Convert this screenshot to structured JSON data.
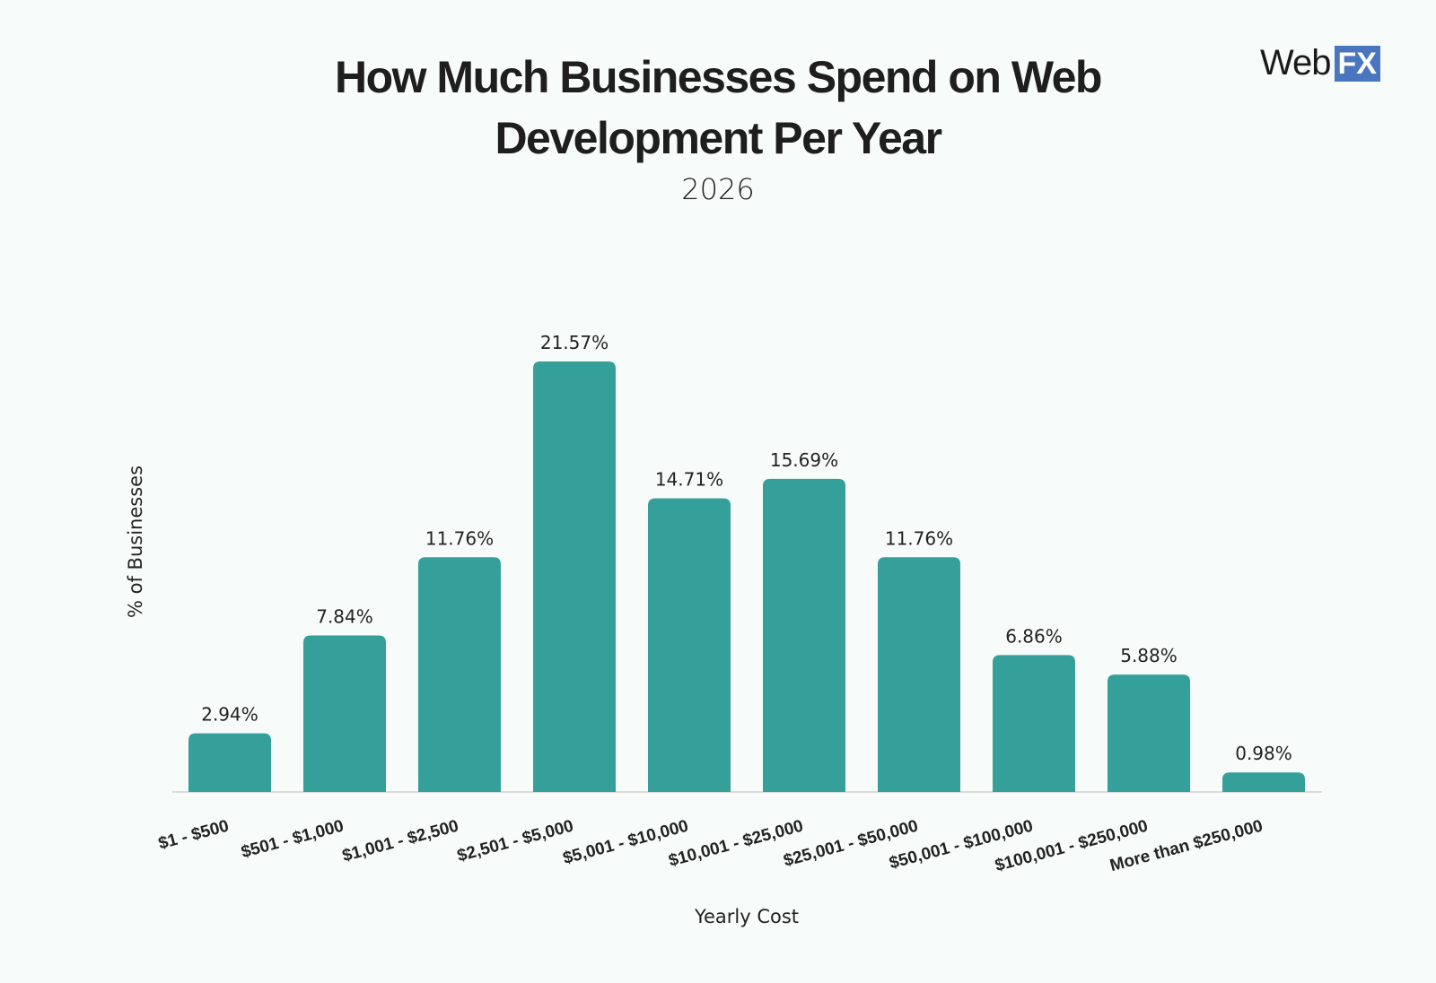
{
  "logo": {
    "text_a": "Web",
    "text_b": "FX",
    "color": "#4a76c0"
  },
  "chart_data": {
    "type": "bar",
    "title": "How Much Businesses Spend on Web Development Per Year",
    "title_line1": "How Much Businesses Spend on Web",
    "title_line2": "Development Per Year",
    "subtitle": "2026",
    "xlabel": "Yearly Cost",
    "ylabel": "% of Businesses",
    "categories": [
      "$1 - $500",
      "$501 - $1,000",
      "$1,001 - $2,500",
      "$2,501 - $5,000",
      "$5,001 - $10,000",
      "$10,001 - $25,000",
      "$25,001 - $50,000",
      "$50,001 - $100,000",
      "$100,001 - $250,000",
      "More than $250,000"
    ],
    "values": [
      2.94,
      7.84,
      11.76,
      21.57,
      14.71,
      15.69,
      11.76,
      6.86,
      5.88,
      0.98
    ],
    "data_labels": [
      "2.94%",
      "7.84%",
      "11.76%",
      "21.57%",
      "14.71%",
      "15.69%",
      "11.76%",
      "6.86%",
      "5.88%",
      "0.98%"
    ],
    "bar_color": "#35a09a",
    "grid": false
  }
}
